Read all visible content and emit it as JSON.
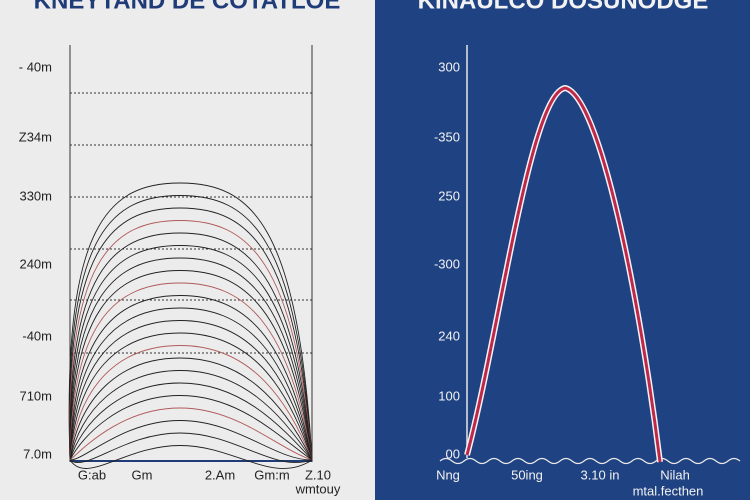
{
  "left": {
    "title": "KNEYTAND DE COTATLOE",
    "y_labels": [
      "- 40m",
      "Z34m",
      "330m",
      "240m",
      "-40m",
      "710m",
      "7.0m"
    ],
    "x_labels": [
      "G:ab",
      "Gm",
      "2.Am",
      "Gm:m",
      "Z.10"
    ],
    "x_note": "wmtouy"
  },
  "right": {
    "title": "KINAULCO DOSUNODGE",
    "y_labels": [
      "300",
      "-350",
      "250",
      "-300",
      "240",
      "100",
      "00"
    ],
    "x_labels": [
      "Nng",
      "50ing",
      "3.10 in",
      "Nilah"
    ],
    "x_note": "mtal.fecthen"
  }
}
